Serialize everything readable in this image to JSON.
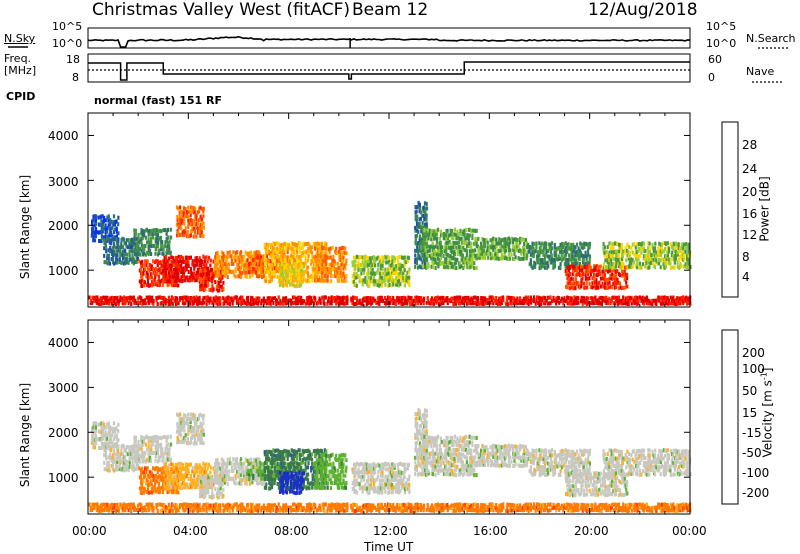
{
  "header": {
    "station": "Christmas Valley West (fitACF)",
    "beam": "Beam 12",
    "date": "12/Aug/2018"
  },
  "nsky_panel": {
    "left_label": "N.Sky",
    "left_ticks": [
      "10^5",
      "10^0"
    ],
    "right_label": "N.Search",
    "right_ticks": [
      "10^5",
      "10^0"
    ]
  },
  "freq_panel": {
    "left_label_line1": "Freq.",
    "left_label_line2": "[MHz]",
    "left_ticks": [
      "18",
      "8"
    ],
    "right_label": "Nave",
    "right_ticks": [
      "60",
      "0"
    ],
    "cpid_label": "CPID",
    "mode_text": "normal (fast) 151 RF"
  },
  "chart_data": [
    {
      "type": "heatmap",
      "name": "power",
      "ylabel": "Slant Range [km]",
      "yticks": [
        "4000",
        "3000",
        "2000",
        "1000"
      ],
      "ylim": [
        180,
        4500
      ],
      "xlim_hours": [
        0,
        24
      ],
      "colorbar": {
        "label": "Power [dB]",
        "ticks": [
          "28",
          "24",
          "20",
          "16",
          "12",
          "8",
          "4"
        ],
        "colors": [
          "#0033ff",
          "#1f4fa8",
          "#2c6e78",
          "#3a8a4a",
          "#4c9a3c",
          "#9acd32",
          "#ffd400",
          "#ffb000",
          "#ff8c00",
          "#ff5a00",
          "#ff2200",
          "#e00000"
        ]
      }
    },
    {
      "type": "heatmap",
      "name": "velocity",
      "ylabel": "Slant Range [km]",
      "yticks": [
        "4000",
        "3000",
        "2000",
        "1000"
      ],
      "ylim": [
        180,
        4500
      ],
      "xlim_hours": [
        0,
        24
      ],
      "xlabel": "Time UT",
      "xticks": [
        "00:00",
        "04:00",
        "08:00",
        "12:00",
        "16:00",
        "20:00",
        "00:00"
      ],
      "colorbar": {
        "label": "Velocity [m s",
        "label_sup": "-1",
        "label_end": "]",
        "ticks": [
          "200",
          "100",
          "50",
          "15",
          "-15",
          "-50",
          "-100",
          "-200"
        ],
        "colors": [
          "#1a2ec8",
          "#2e5a9a",
          "#3a7a4a",
          "#5ab42c",
          "#c8c8c0",
          "#ffb020",
          "#ff7a00",
          "#ff3c00",
          "#e00000"
        ]
      }
    }
  ]
}
